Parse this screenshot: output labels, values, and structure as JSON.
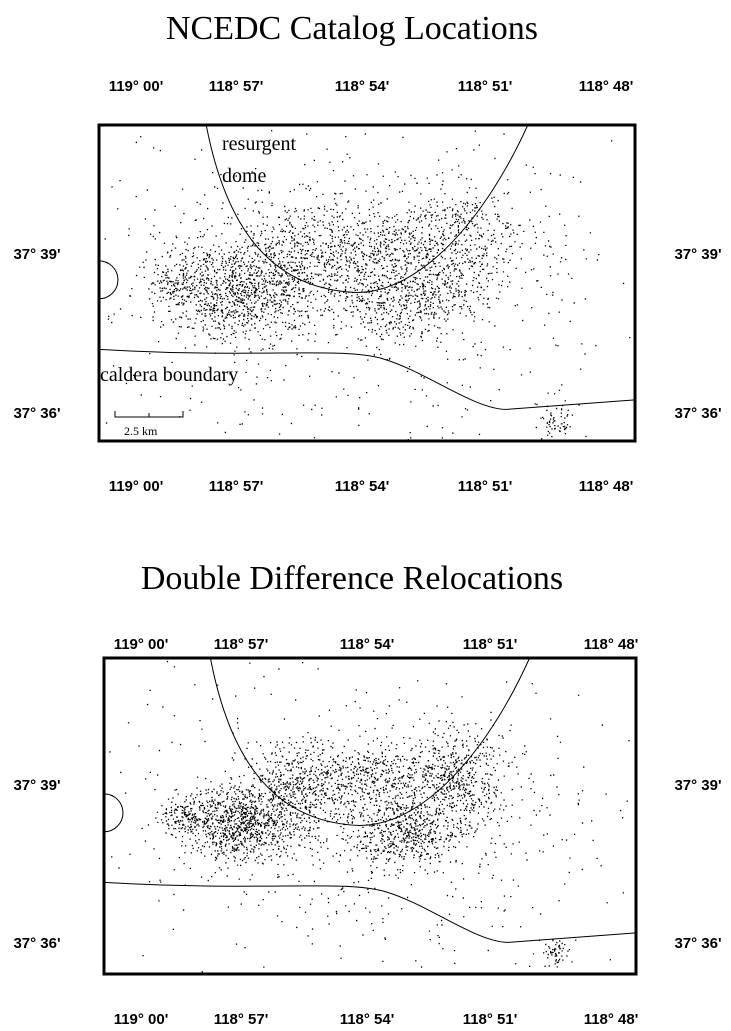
{
  "panels": [
    {
      "title": "NCEDC Catalog Locations",
      "x_labels": [
        "119° 00'",
        "118° 57'",
        "118° 54'",
        "118° 51'",
        "118° 48'"
      ],
      "y_labels": [
        "37° 39'",
        "37° 36'"
      ],
      "annotations": [
        "resurgent",
        "dome",
        "caldera boundary"
      ],
      "scale_label": "2.5 km"
    },
    {
      "title": "Double Difference Relocations",
      "x_labels": [
        "119° 00'",
        "118° 57'",
        "118° 54'",
        "118° 51'",
        "118° 48'"
      ],
      "y_labels": [
        "37° 39'",
        "37° 36'"
      ]
    }
  ]
}
